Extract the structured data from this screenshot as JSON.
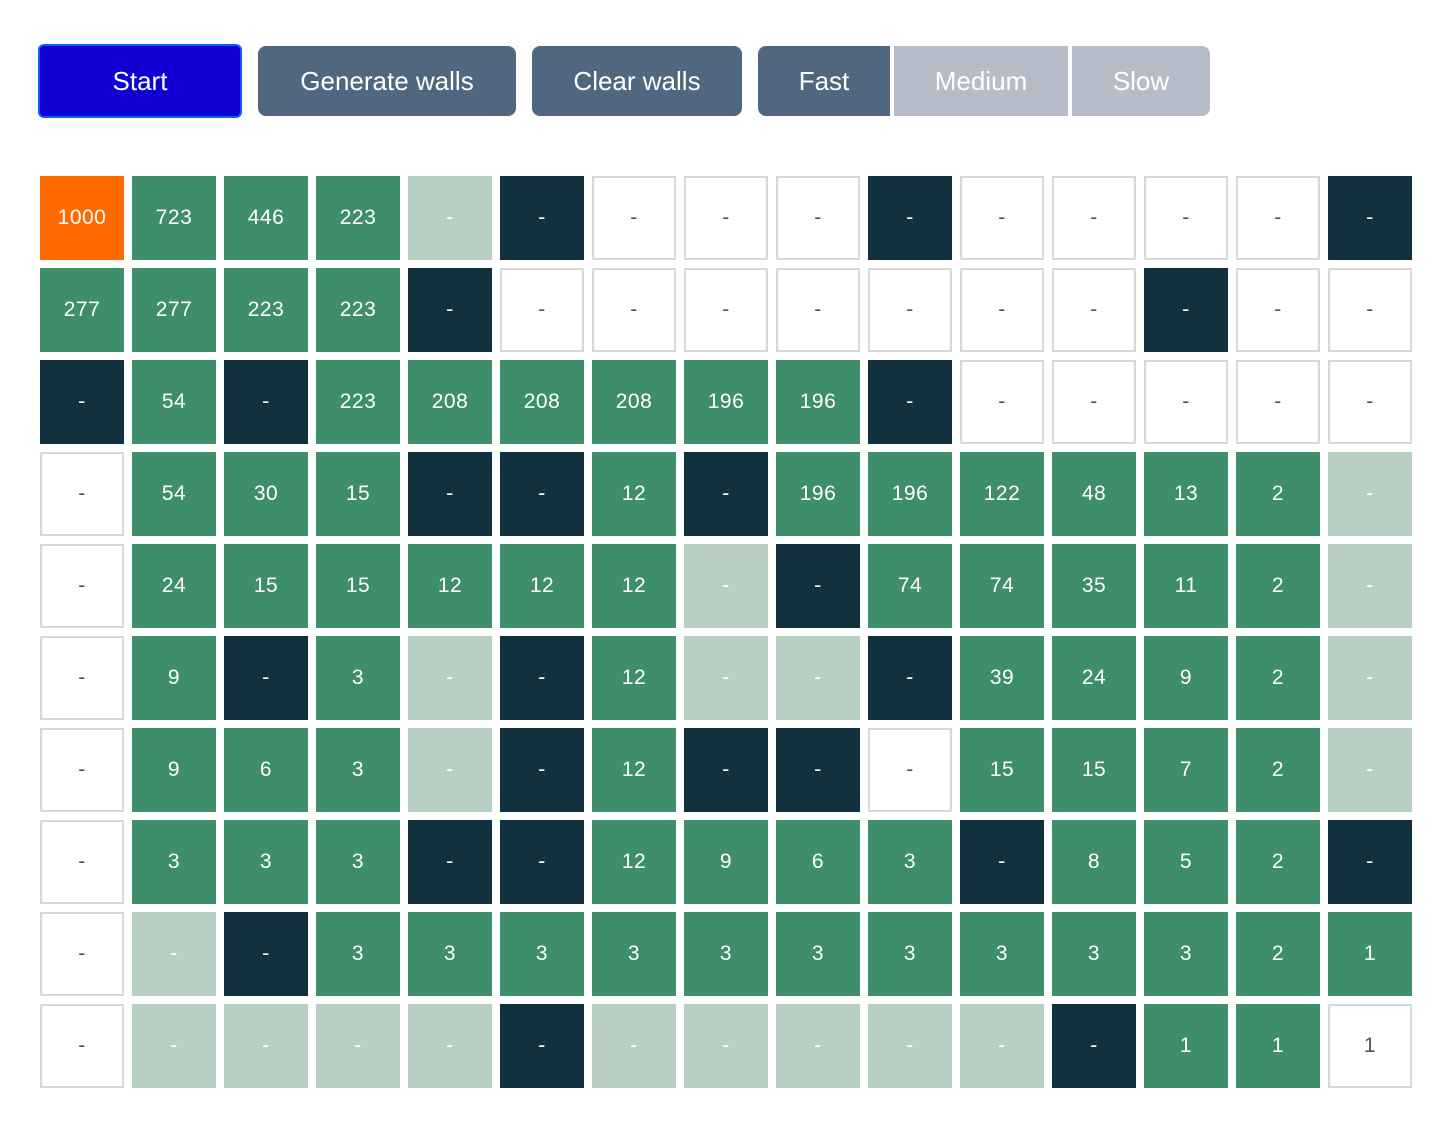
{
  "toolbar": {
    "start_label": "Start",
    "generate_label": "Generate walls",
    "clear_label": "Clear walls",
    "speeds": [
      {
        "label": "Fast",
        "selected": true
      },
      {
        "label": "Medium",
        "selected": false
      },
      {
        "label": "Slow",
        "selected": false
      }
    ]
  },
  "colors": {
    "start_button": "#1100d4",
    "button": "#51667f",
    "button_inactive": "#b6bdc8",
    "start_cell": "#ff6a00",
    "wall": "#12313f",
    "path": "#3e8e6a",
    "visited": "#b8cfc4",
    "empty": "#ffffff"
  },
  "grid": {
    "rows": [
      [
        [
          "start",
          "1000"
        ],
        [
          "path",
          "723"
        ],
        [
          "path",
          "446"
        ],
        [
          "path",
          "223"
        ],
        [
          "visited",
          "-"
        ],
        [
          "wall",
          "-"
        ],
        [
          "empty",
          "-"
        ],
        [
          "empty",
          "-"
        ],
        [
          "empty",
          "-"
        ],
        [
          "wall",
          "-"
        ],
        [
          "empty",
          "-"
        ],
        [
          "empty",
          "-"
        ],
        [
          "empty",
          "-"
        ],
        [
          "empty",
          "-"
        ],
        [
          "wall",
          "-"
        ]
      ],
      [
        [
          "path",
          "277"
        ],
        [
          "path",
          "277"
        ],
        [
          "path",
          "223"
        ],
        [
          "path",
          "223"
        ],
        [
          "wall",
          "-"
        ],
        [
          "empty",
          "-"
        ],
        [
          "empty",
          "-"
        ],
        [
          "empty",
          "-"
        ],
        [
          "empty",
          "-"
        ],
        [
          "empty",
          "-"
        ],
        [
          "empty",
          "-"
        ],
        [
          "empty",
          "-"
        ],
        [
          "wall",
          "-"
        ],
        [
          "empty",
          "-"
        ],
        [
          "empty",
          "-"
        ]
      ],
      [
        [
          "wall",
          "-"
        ],
        [
          "path",
          "54"
        ],
        [
          "wall",
          "-"
        ],
        [
          "path",
          "223"
        ],
        [
          "path",
          "208"
        ],
        [
          "path",
          "208"
        ],
        [
          "path",
          "208"
        ],
        [
          "path",
          "196"
        ],
        [
          "path",
          "196"
        ],
        [
          "wall",
          "-"
        ],
        [
          "empty",
          "-"
        ],
        [
          "empty",
          "-"
        ],
        [
          "empty",
          "-"
        ],
        [
          "empty",
          "-"
        ],
        [
          "empty",
          "-"
        ]
      ],
      [
        [
          "empty",
          "-"
        ],
        [
          "path",
          "54"
        ],
        [
          "path",
          "30"
        ],
        [
          "path",
          "15"
        ],
        [
          "wall",
          "-"
        ],
        [
          "wall",
          "-"
        ],
        [
          "path",
          "12"
        ],
        [
          "wall",
          "-"
        ],
        [
          "path",
          "196"
        ],
        [
          "path",
          "196"
        ],
        [
          "path",
          "122"
        ],
        [
          "path",
          "48"
        ],
        [
          "path",
          "13"
        ],
        [
          "path",
          "2"
        ],
        [
          "visited",
          "-"
        ]
      ],
      [
        [
          "empty",
          "-"
        ],
        [
          "path",
          "24"
        ],
        [
          "path",
          "15"
        ],
        [
          "path",
          "15"
        ],
        [
          "path",
          "12"
        ],
        [
          "path",
          "12"
        ],
        [
          "path",
          "12"
        ],
        [
          "visited",
          "-"
        ],
        [
          "wall",
          "-"
        ],
        [
          "path",
          "74"
        ],
        [
          "path",
          "74"
        ],
        [
          "path",
          "35"
        ],
        [
          "path",
          "11"
        ],
        [
          "path",
          "2"
        ],
        [
          "visited",
          "-"
        ]
      ],
      [
        [
          "empty",
          "-"
        ],
        [
          "path",
          "9"
        ],
        [
          "wall",
          "-"
        ],
        [
          "path",
          "3"
        ],
        [
          "visited",
          "-"
        ],
        [
          "wall",
          "-"
        ],
        [
          "path",
          "12"
        ],
        [
          "visited",
          "-"
        ],
        [
          "visited",
          "-"
        ],
        [
          "wall",
          "-"
        ],
        [
          "path",
          "39"
        ],
        [
          "path",
          "24"
        ],
        [
          "path",
          "9"
        ],
        [
          "path",
          "2"
        ],
        [
          "visited",
          "-"
        ]
      ],
      [
        [
          "empty",
          "-"
        ],
        [
          "path",
          "9"
        ],
        [
          "path",
          "6"
        ],
        [
          "path",
          "3"
        ],
        [
          "visited",
          "-"
        ],
        [
          "wall",
          "-"
        ],
        [
          "path",
          "12"
        ],
        [
          "wall",
          "-"
        ],
        [
          "wall",
          "-"
        ],
        [
          "empty",
          "-"
        ],
        [
          "path",
          "15"
        ],
        [
          "path",
          "15"
        ],
        [
          "path",
          "7"
        ],
        [
          "path",
          "2"
        ],
        [
          "visited",
          "-"
        ]
      ],
      [
        [
          "empty",
          "-"
        ],
        [
          "path",
          "3"
        ],
        [
          "path",
          "3"
        ],
        [
          "path",
          "3"
        ],
        [
          "wall",
          "-"
        ],
        [
          "wall",
          "-"
        ],
        [
          "path",
          "12"
        ],
        [
          "path",
          "9"
        ],
        [
          "path",
          "6"
        ],
        [
          "path",
          "3"
        ],
        [
          "wall",
          "-"
        ],
        [
          "path",
          "8"
        ],
        [
          "path",
          "5"
        ],
        [
          "path",
          "2"
        ],
        [
          "wall",
          "-"
        ]
      ],
      [
        [
          "empty",
          "-"
        ],
        [
          "visited",
          "-"
        ],
        [
          "wall",
          "-"
        ],
        [
          "path",
          "3"
        ],
        [
          "path",
          "3"
        ],
        [
          "path",
          "3"
        ],
        [
          "path",
          "3"
        ],
        [
          "path",
          "3"
        ],
        [
          "path",
          "3"
        ],
        [
          "path",
          "3"
        ],
        [
          "path",
          "3"
        ],
        [
          "path",
          "3"
        ],
        [
          "path",
          "3"
        ],
        [
          "path",
          "2"
        ],
        [
          "path",
          "1"
        ]
      ],
      [
        [
          "empty",
          "-"
        ],
        [
          "visited",
          "-"
        ],
        [
          "visited",
          "-"
        ],
        [
          "visited",
          "-"
        ],
        [
          "visited",
          "-"
        ],
        [
          "wall",
          "-"
        ],
        [
          "visited",
          "-"
        ],
        [
          "visited",
          "-"
        ],
        [
          "visited",
          "-"
        ],
        [
          "visited",
          "-"
        ],
        [
          "visited",
          "-"
        ],
        [
          "wall",
          "-"
        ],
        [
          "path",
          "1"
        ],
        [
          "path",
          "1"
        ],
        [
          "empty",
          "1"
        ]
      ]
    ]
  }
}
